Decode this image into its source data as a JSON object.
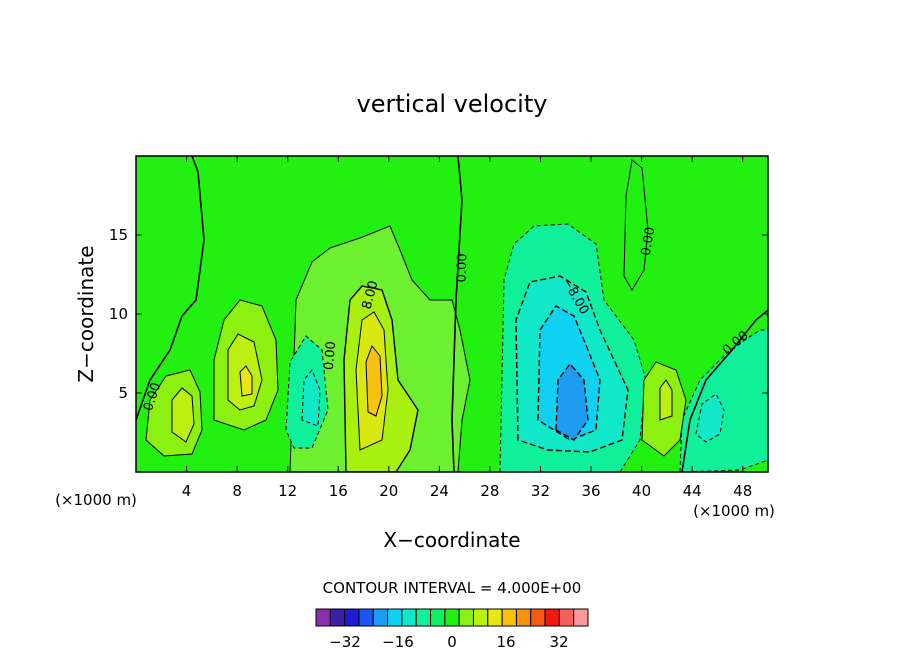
{
  "chart_data": {
    "type": "heatmap",
    "title": "vertical velocity",
    "xlabel": "X−coordinate",
    "ylabel": "Z−coordinate",
    "x_unit_label": "(×1000 m)",
    "z_unit_label": "(×1000 m)",
    "xlim": [
      0,
      50
    ],
    "ylim": [
      0,
      20
    ],
    "x_ticks": [
      4,
      8,
      12,
      16,
      20,
      24,
      28,
      32,
      36,
      40,
      44,
      48
    ],
    "y_ticks": [
      5,
      10,
      15
    ],
    "contour_interval_text": "CONTOUR INTERVAL = 4.000E+00",
    "colorbar_labels": [
      "−32",
      "−16",
      "0",
      "16",
      "32"
    ],
    "colorbar_colors": [
      "#8B2FB0",
      "#3A1FA8",
      "#1C1CD4",
      "#1E55F0",
      "#1E9CF0",
      "#10D2F0",
      "#10E8C8",
      "#10F09A",
      "#10F060",
      "#22F010",
      "#8CF010",
      "#BCF010",
      "#E8E810",
      "#F8C010",
      "#F89010",
      "#F85A10",
      "#F01A10",
      "#F86060",
      "#F89898"
    ],
    "contour_labels": [
      "0.00",
      "0.00",
      "8.00",
      "0.00",
      "−8.00",
      "0.00",
      "0.00"
    ]
  }
}
